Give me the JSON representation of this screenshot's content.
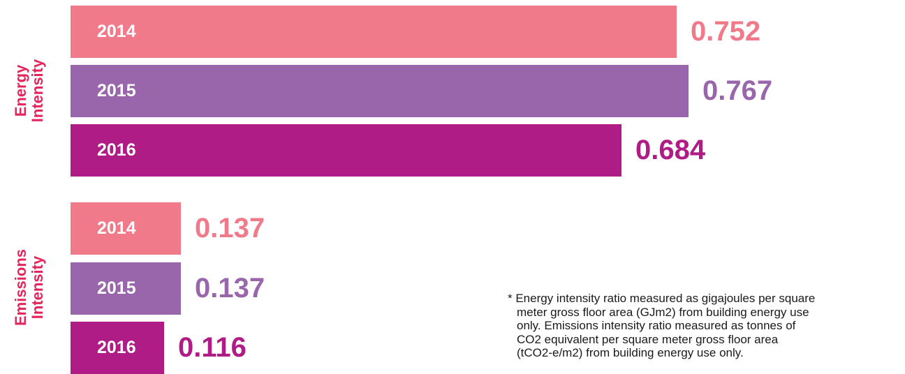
{
  "chart_data": {
    "type": "bar",
    "orientation": "horizontal",
    "groups": [
      {
        "name": "Energy\nIntensity",
        "bars": [
          {
            "category": "2014",
            "value": 0.752,
            "label": "0.752",
            "color": "#f07a8a"
          },
          {
            "category": "2015",
            "value": 0.767,
            "label": "0.767",
            "color": "#9a66ab"
          },
          {
            "category": "2016",
            "value": 0.684,
            "label": "0.684",
            "color": "#af1c85"
          }
        ]
      },
      {
        "name": "Emissions\nIntensity",
        "bars": [
          {
            "category": "2014",
            "value": 0.137,
            "label": "0.137",
            "color": "#f07a8a"
          },
          {
            "category": "2015",
            "value": 0.137,
            "label": "0.137",
            "color": "#9a66ab"
          },
          {
            "category": "2016",
            "value": 0.116,
            "label": "0.116",
            "color": "#af1c85"
          }
        ]
      }
    ],
    "group_label_color": "#e4245a",
    "axis_visible": false,
    "grid": false
  },
  "footnote": [
    "* Energy intensity ratio measured as gigajoules per square",
    "meter gross floor area (GJm2) from building energy use",
    "only. Emissions intensity ratio measured as tonnes of",
    "CO2 equivalent per square meter gross floor area",
    "(tCO2-e/m2) from building energy use only."
  ]
}
